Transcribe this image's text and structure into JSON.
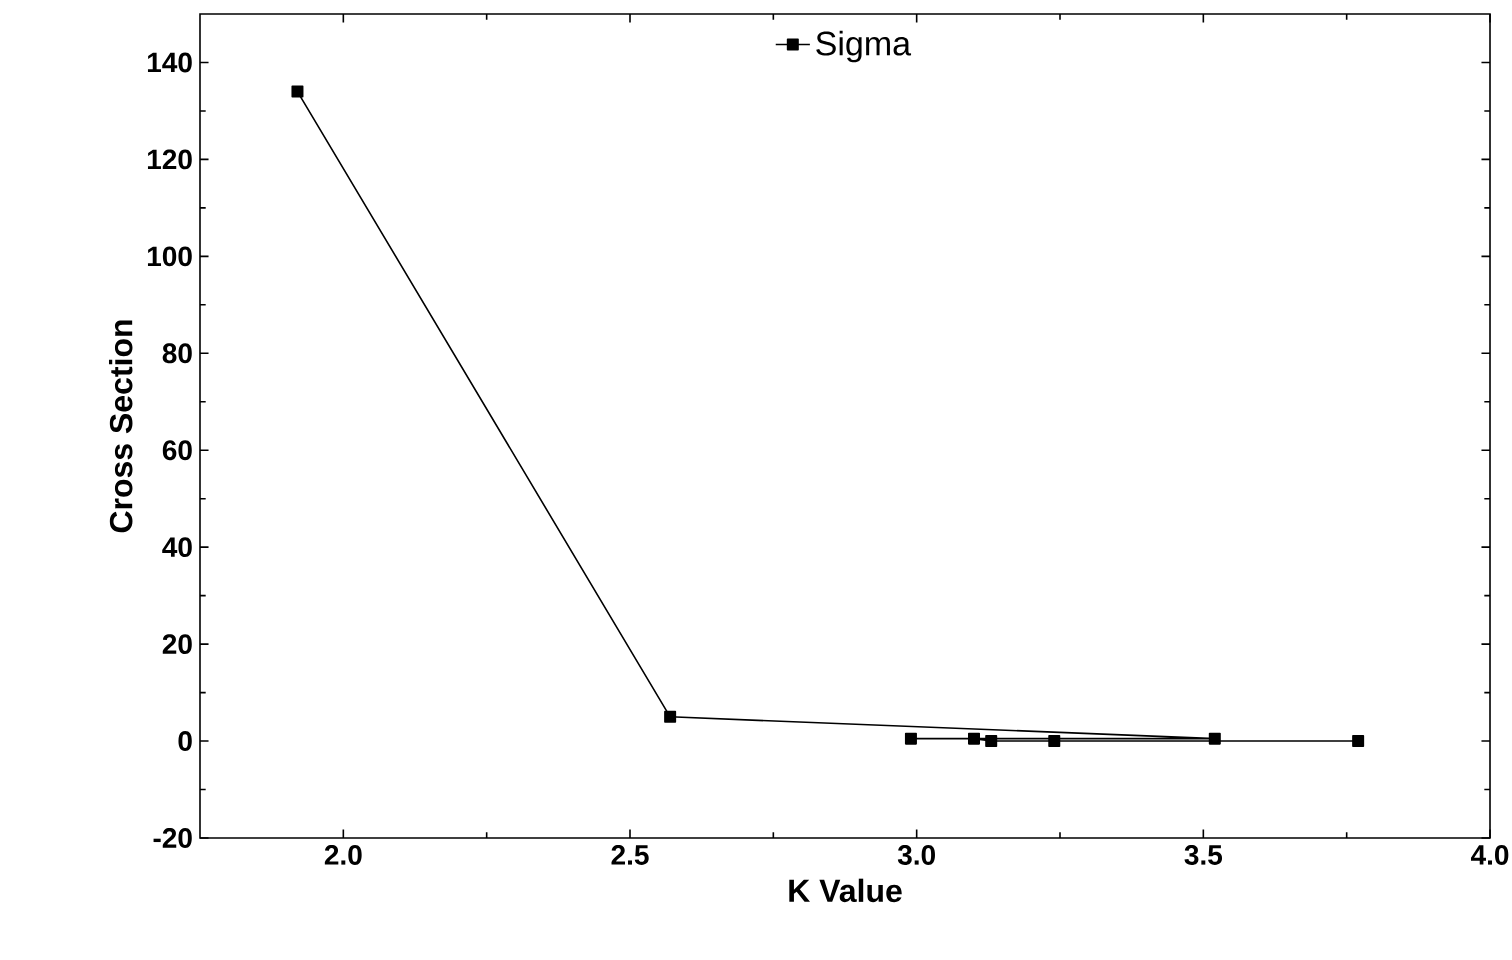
{
  "chart_data": {
    "type": "line",
    "xlabel": "K Value",
    "ylabel": "Cross Section",
    "x": [
      1.92,
      2.57,
      3.52,
      2.99,
      3.1,
      3.13,
      3.24,
      3.77
    ],
    "series": [
      {
        "name": "Sigma",
        "color": "#000000",
        "values": [
          134,
          5,
          0.5,
          0.5,
          0.5,
          0,
          0,
          0
        ]
      }
    ],
    "xlim": [
      1.75,
      4.0
    ],
    "xticks": [
      {
        "value": 2,
        "label": "2.0"
      },
      2.5,
      {
        "value": 3,
        "label": "3.0"
      },
      3.5,
      {
        "value": 4,
        "label": "4.0"
      }
    ],
    "ylim": [
      -20,
      150
    ],
    "yticks": [
      -20,
      0,
      20,
      40,
      60,
      80,
      100,
      120,
      140
    ],
    "marker": "square",
    "line_style": "solid",
    "legend": "top",
    "grid": false
  }
}
